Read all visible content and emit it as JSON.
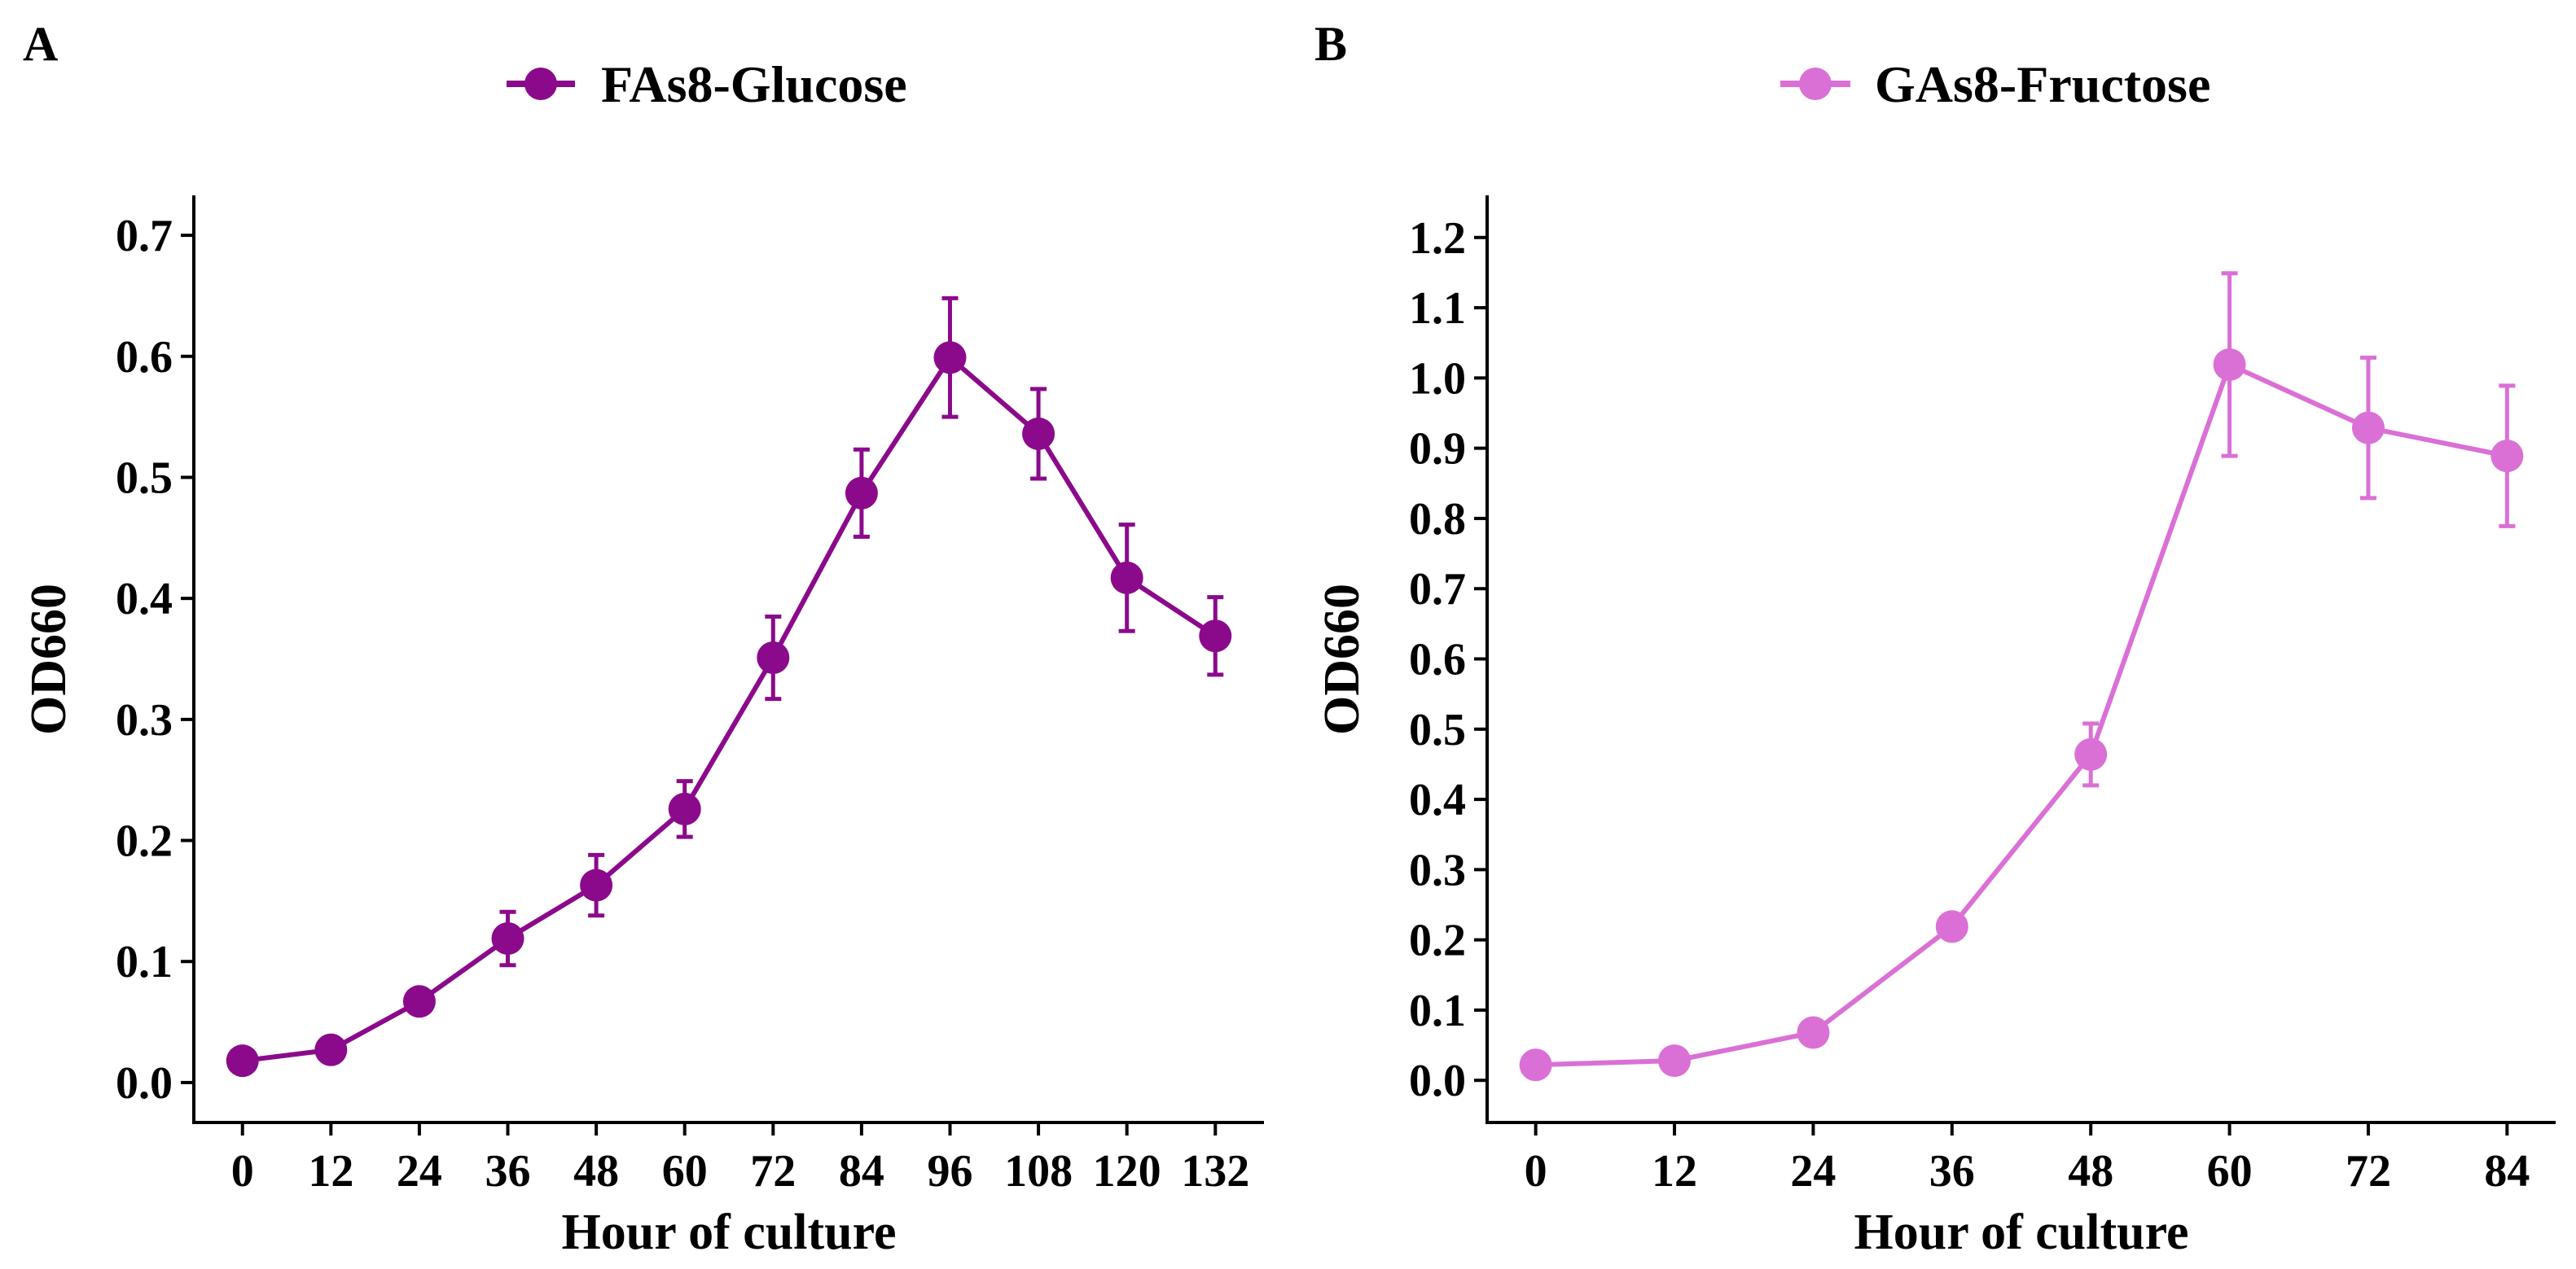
{
  "chart_data": [
    {
      "type": "line",
      "panel": "A",
      "series": [
        {
          "name": "FAs8-Glucose",
          "color": "#8B0A8B",
          "x": [
            0,
            12,
            24,
            36,
            48,
            60,
            72,
            84,
            96,
            108,
            120,
            132
          ],
          "y": [
            0.018,
            0.027,
            0.067,
            0.119,
            0.163,
            0.226,
            0.351,
            0.487,
            0.599,
            0.536,
            0.417,
            0.369
          ],
          "error": [
            0.003,
            0.003,
            0.005,
            0.022,
            0.025,
            0.023,
            0.034,
            0.036,
            0.049,
            0.037,
            0.044,
            0.032
          ]
        }
      ],
      "xlabel": "Hour of culture",
      "ylabel": "OD660",
      "xticks": [
        0,
        12,
        24,
        36,
        48,
        60,
        72,
        84,
        96,
        108,
        120,
        132
      ],
      "xtick_labels": [
        "0",
        "12",
        "24",
        "36",
        "48",
        "60",
        "72",
        "84",
        "96",
        "108",
        "120",
        "132"
      ],
      "yticks": [
        0.0,
        0.1,
        0.2,
        0.3,
        0.4,
        0.5,
        0.6,
        0.7
      ],
      "ytick_labels": [
        "0.0",
        "0.1",
        "0.2",
        "0.3",
        "0.4",
        "0.5",
        "0.6",
        "0.7"
      ],
      "xlim": [
        -6.6,
        138.6
      ],
      "ylim": [
        -0.033,
        0.733
      ],
      "grid": false,
      "legend_position": "top"
    },
    {
      "type": "line",
      "panel": "B",
      "series": [
        {
          "name": "GAs8-Fructose",
          "color": "#DA70D6",
          "x": [
            0,
            12,
            24,
            36,
            48,
            60,
            72,
            84
          ],
          "y": [
            0.022,
            0.028,
            0.068,
            0.219,
            0.464,
            1.019,
            0.929,
            0.889
          ],
          "error": [
            0.003,
            0.003,
            0.005,
            0.015,
            0.044,
            0.13,
            0.1,
            0.1
          ]
        }
      ],
      "xlabel": "Hour of culture",
      "ylabel": "OD660",
      "xticks": [
        0,
        12,
        24,
        36,
        48,
        60,
        72,
        84
      ],
      "xtick_labels": [
        "0",
        "12",
        "24",
        "36",
        "48",
        "60",
        "72",
        "84"
      ],
      "yticks": [
        0.0,
        0.1,
        0.2,
        0.3,
        0.4,
        0.5,
        0.6,
        0.7,
        0.8,
        0.9,
        1.0,
        1.1,
        1.2
      ],
      "ytick_labels": [
        "0.0",
        "0.1",
        "0.2",
        "0.3",
        "0.4",
        "0.5",
        "0.6",
        "0.7",
        "0.8",
        "0.9",
        "1.0",
        "1.1",
        "1.2"
      ],
      "xlim": [
        -4.2,
        88.2
      ],
      "ylim": [
        -0.06,
        1.26
      ],
      "grid": false,
      "legend_position": "top"
    }
  ]
}
